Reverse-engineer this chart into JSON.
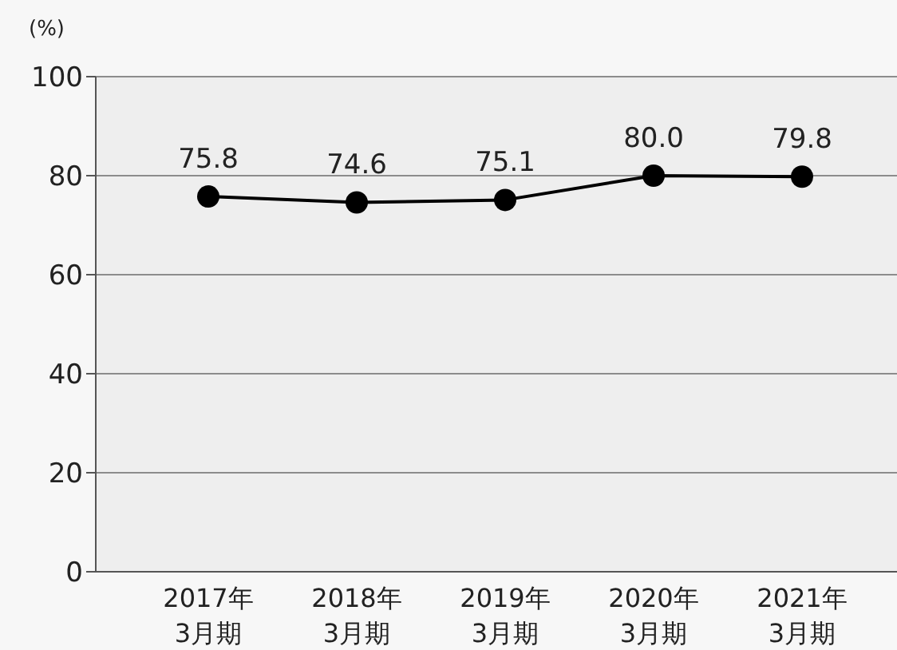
{
  "chart_data": {
    "type": "line",
    "ylabel": "(%)",
    "categories": [
      "2017年\n3月期",
      "2018年\n3月期",
      "2019年\n3月期",
      "2020年\n3月期",
      "2021年\n3月期"
    ],
    "series": [
      {
        "color": "#000000",
        "values": [
          75.8,
          74.6,
          75.1,
          80.0,
          79.8
        ],
        "value_labels": [
          "75.8",
          "74.6",
          "75.1",
          "80.0",
          "79.8"
        ]
      }
    ],
    "ylim": [
      0,
      100
    ],
    "yticks": [
      0,
      20,
      40,
      60,
      80,
      100
    ],
    "grid": "y",
    "marker": "circle",
    "line_style": "solid"
  }
}
